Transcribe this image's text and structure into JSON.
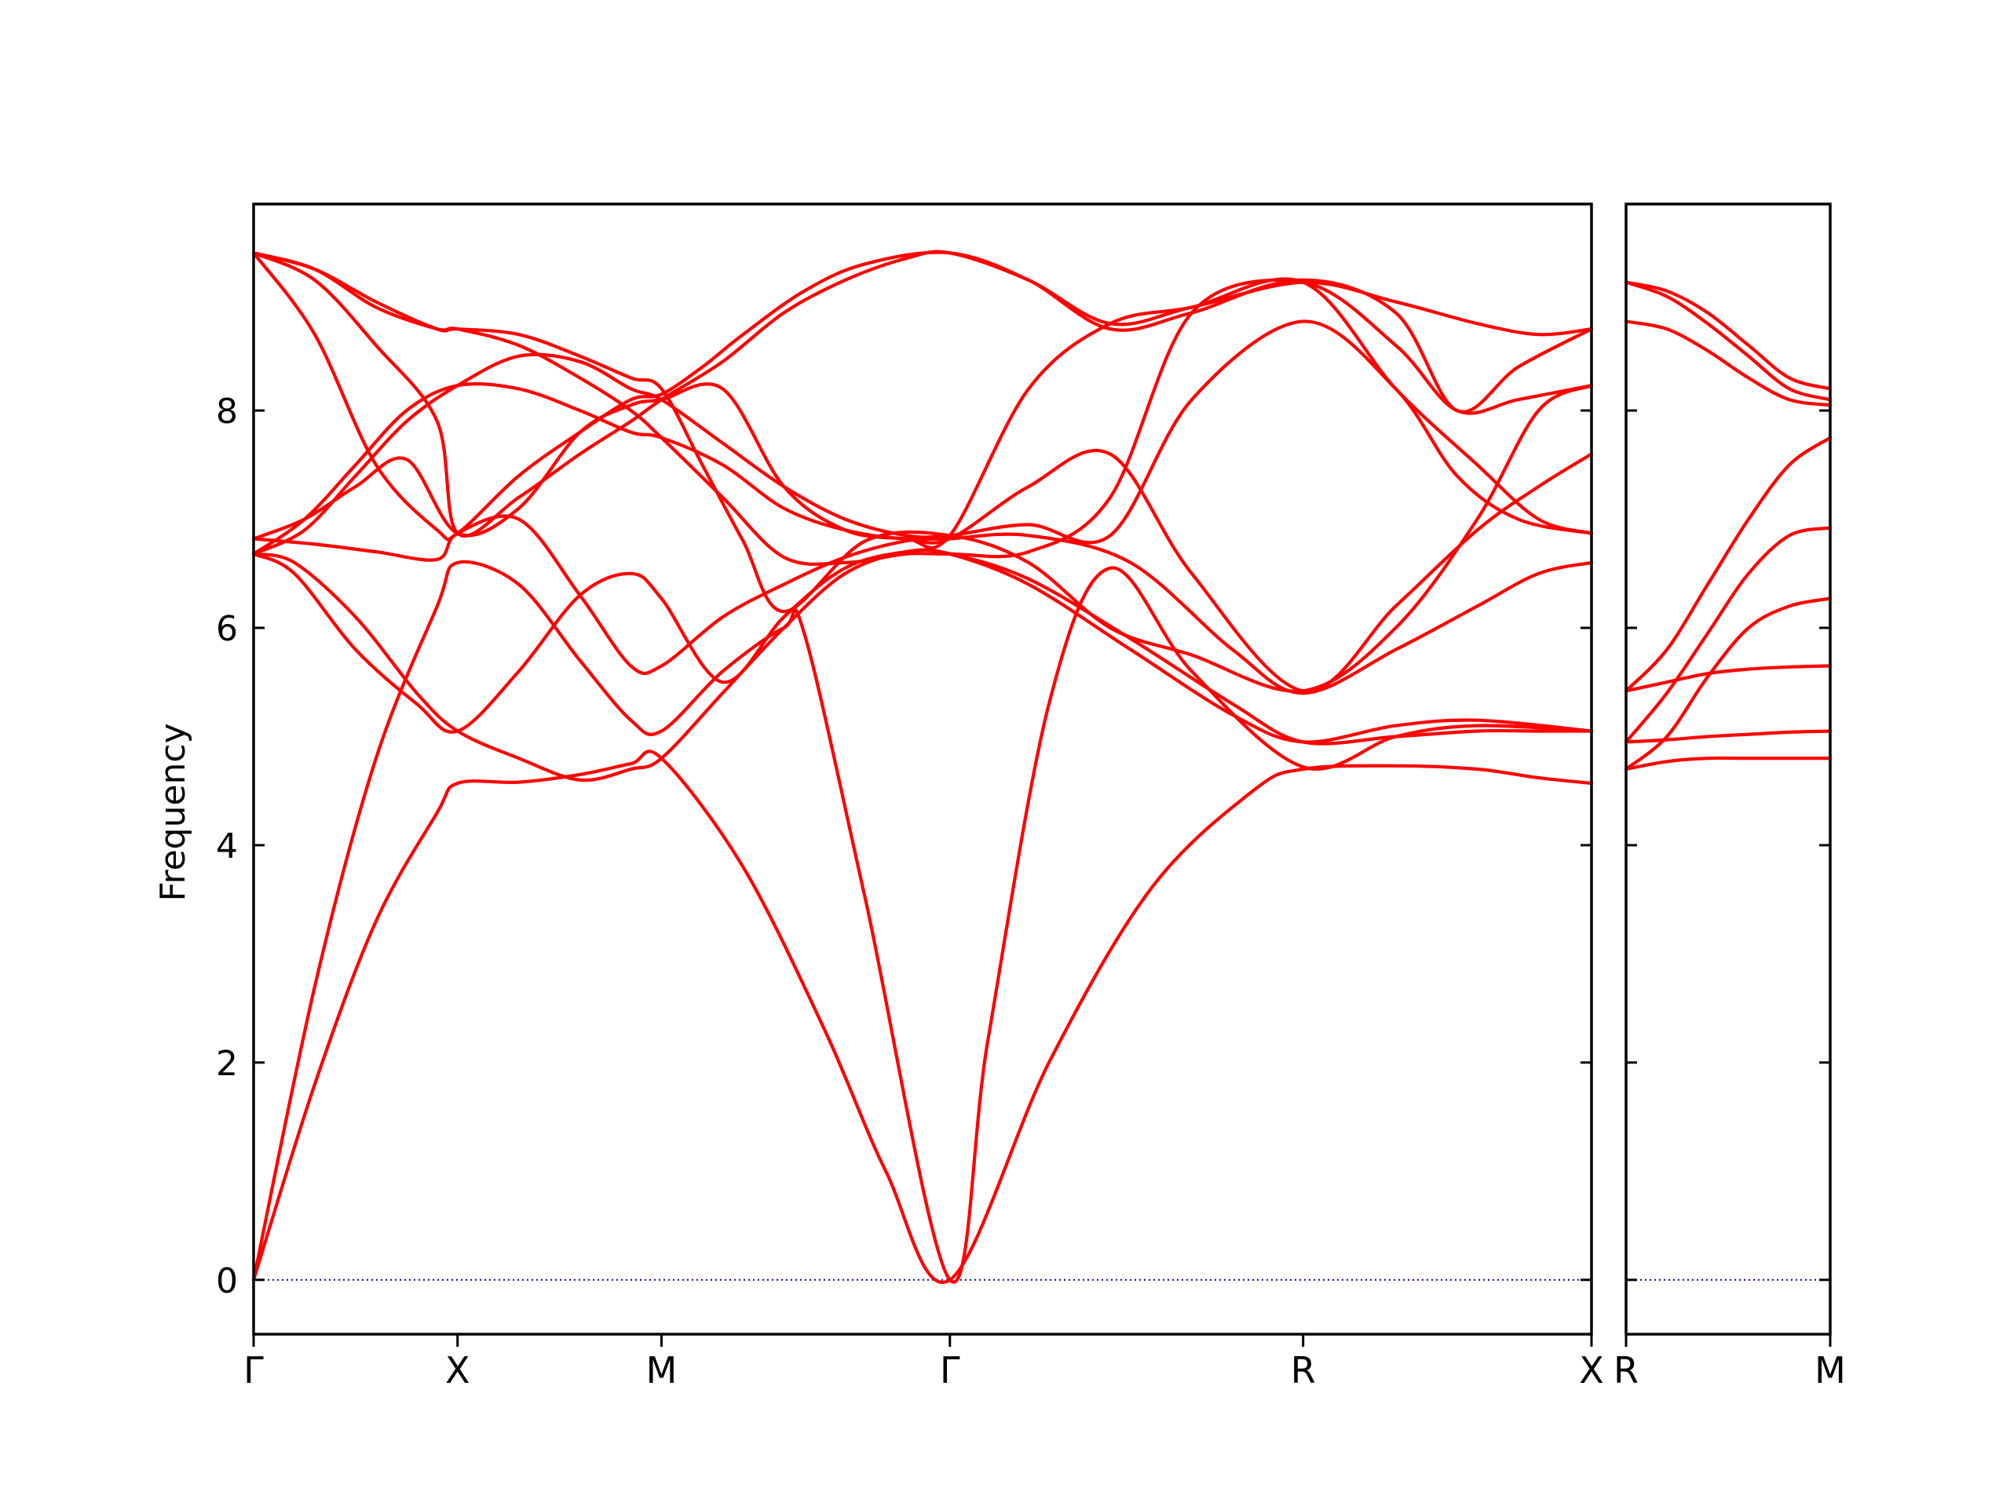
{
  "chart_data": {
    "type": "line",
    "ylabel": "Frequency",
    "ylim": [
      -0.5,
      9.9
    ],
    "yticks": [
      0,
      2,
      4,
      6,
      8
    ],
    "line_color": "#ff0000",
    "zero_line_color": "#0000aa",
    "grid": false,
    "panels": [
      {
        "name": "main",
        "xticks": [
          {
            "label": "Γ",
            "x": 0.0
          },
          {
            "label": "X",
            "x": 1.0
          },
          {
            "label": "M",
            "x": 2.0
          },
          {
            "label": "Γ",
            "x": 3.414
          },
          {
            "label": "R",
            "x": 5.146
          },
          {
            "label": "X",
            "x": 6.56
          }
        ],
        "xlim": [
          0.0,
          6.56
        ],
        "series": [
          {
            "x": [
              0.0,
              0.3,
              0.6,
              0.9,
              1.0,
              1.3,
              1.6,
              1.85,
              2.0,
              2.4,
              2.8,
              3.1,
              3.414,
              3.9,
              4.4,
              4.9,
              5.146,
              5.6,
              6.0,
              6.3,
              6.56
            ],
            "y": [
              0.0,
              1.8,
              3.3,
              4.3,
              4.57,
              4.58,
              4.65,
              4.75,
              4.8,
              3.8,
              2.3,
              1.0,
              0.0,
              2.0,
              3.6,
              4.5,
              4.7,
              4.73,
              4.7,
              4.62,
              4.57
            ]
          },
          {
            "x": [
              0.0,
              0.3,
              0.6,
              0.9,
              1.0,
              1.3,
              1.6,
              1.85,
              2.0,
              2.3,
              2.6,
              2.7,
              3.0,
              3.414,
              3.6,
              3.9,
              4.2,
              4.6,
              5.146,
              5.6,
              6.0,
              6.56
            ],
            "y": [
              0.0,
              2.7,
              4.8,
              6.2,
              6.6,
              6.4,
              5.7,
              5.15,
              5.05,
              5.6,
              6.0,
              5.95,
              3.5,
              0.0,
              2.2,
              5.3,
              6.55,
              5.6,
              4.72,
              5.0,
              5.1,
              5.05
            ]
          },
          {
            "x": [
              0.0,
              0.2,
              0.5,
              0.8,
              1.0,
              1.3,
              1.6,
              1.85,
              2.0,
              2.3,
              2.6,
              2.9,
              3.2,
              3.414,
              3.8,
              4.3,
              4.8,
              5.146,
              5.6,
              6.0,
              6.56
            ],
            "y": [
              6.68,
              6.5,
              5.8,
              5.3,
              5.05,
              5.6,
              6.3,
              6.5,
              6.27,
              5.5,
              6.1,
              6.55,
              6.7,
              6.68,
              6.4,
              5.8,
              5.2,
              4.95,
              5.1,
              5.15,
              5.05
            ]
          },
          {
            "x": [
              0.0,
              0.2,
              0.5,
              0.8,
              1.0,
              1.3,
              1.6,
              1.85,
              2.0,
              2.3,
              2.6,
              2.9,
              3.2,
              3.414,
              3.8,
              4.3,
              4.8,
              5.146,
              5.6,
              6.0,
              6.3,
              6.56
            ],
            "y": [
              6.68,
              6.6,
              6.1,
              5.4,
              5.05,
              4.8,
              4.6,
              4.7,
              4.8,
              5.4,
              6.0,
              6.5,
              6.7,
              6.68,
              6.45,
              5.9,
              5.3,
              4.95,
              5.0,
              5.05,
              5.05,
              5.05
            ]
          },
          {
            "x": [
              0.0,
              0.3,
              0.6,
              0.9,
              1.0,
              1.3,
              1.6,
              1.85,
              2.0,
              2.3,
              2.6,
              2.9,
              3.2,
              3.414,
              3.8,
              4.3,
              4.8,
              5.146,
              5.6,
              6.0,
              6.3,
              6.56
            ],
            "y": [
              6.82,
              6.77,
              6.7,
              6.63,
              6.87,
              7.0,
              6.3,
              5.65,
              5.65,
              6.1,
              6.4,
              6.65,
              6.8,
              6.82,
              6.85,
              6.6,
              5.8,
              5.4,
              5.8,
              6.2,
              6.5,
              6.6
            ]
          },
          {
            "x": [
              0.0,
              0.25,
              0.5,
              0.75,
              1.0,
              1.3,
              1.6,
              1.85,
              2.0,
              2.3,
              2.6,
              2.9,
              3.2,
              3.414,
              3.8,
              4.2,
              4.6,
              5.146,
              5.6,
              6.0,
              6.3,
              6.56
            ],
            "y": [
              6.82,
              7.0,
              7.3,
              7.55,
              6.87,
              7.1,
              7.8,
              8.05,
              8.1,
              8.2,
              7.3,
              6.9,
              6.82,
              6.82,
              7.3,
              7.6,
              6.5,
              5.42,
              6.2,
              6.9,
              7.3,
              7.6
            ]
          },
          {
            "x": [
              0.0,
              0.25,
              0.5,
              0.75,
              1.0,
              1.3,
              1.6,
              1.85,
              2.0,
              2.3,
              2.6,
              2.9,
              3.2,
              3.414,
              3.8,
              4.2,
              4.6,
              5.146,
              5.6,
              5.9,
              6.2,
              6.56
            ],
            "y": [
              6.68,
              6.9,
              7.4,
              7.9,
              8.23,
              8.5,
              8.45,
              8.2,
              8.1,
              7.7,
              7.3,
              7.0,
              6.85,
              6.85,
              6.95,
              6.85,
              8.1,
              8.82,
              8.2,
              7.4,
              7.0,
              6.87
            ]
          },
          {
            "x": [
              0.0,
              0.3,
              0.6,
              0.9,
              1.0,
              1.3,
              1.6,
              1.85,
              2.0,
              2.3,
              2.6,
              2.9,
              3.2,
              3.414,
              3.8,
              4.2,
              4.6,
              5.146,
              5.6,
              6.0,
              6.3,
              6.56
            ],
            "y": [
              9.45,
              9.2,
              8.6,
              7.9,
              6.87,
              7.2,
              7.6,
              7.9,
              8.1,
              8.45,
              8.9,
              9.2,
              9.4,
              9.45,
              9.2,
              8.8,
              8.95,
              9.18,
              8.2,
              7.5,
              7.0,
              6.87
            ]
          },
          {
            "x": [
              0.0,
              0.3,
              0.6,
              0.9,
              1.0,
              1.3,
              1.6,
              1.85,
              2.0,
              2.3,
              2.6,
              2.9,
              3.2,
              3.414,
              3.8,
              4.2,
              4.6,
              5.146,
              5.6,
              5.9,
              6.2,
              6.56
            ],
            "y": [
              9.45,
              9.3,
              8.95,
              8.75,
              8.75,
              8.6,
              8.3,
              8.0,
              7.75,
              7.2,
              6.65,
              6.6,
              6.68,
              6.68,
              6.7,
              7.2,
              8.9,
              9.2,
              8.9,
              8.0,
              8.4,
              8.75
            ]
          },
          {
            "x": [
              0.0,
              0.3,
              0.6,
              0.9,
              1.0,
              1.3,
              1.6,
              1.85,
              2.0,
              2.2,
              2.4,
              2.6,
              3.0,
              3.414,
              3.8,
              4.2,
              4.6,
              5.146,
              5.6,
              6.0,
              6.3,
              6.56
            ],
            "y": [
              9.45,
              9.3,
              9.0,
              8.75,
              8.75,
              8.7,
              8.5,
              8.3,
              8.2,
              7.5,
              6.8,
              6.15,
              6.8,
              6.85,
              6.6,
              6.0,
              5.75,
              5.42,
              6.0,
              7.0,
              8.0,
              8.23
            ]
          },
          {
            "x": [
              0.0,
              0.25,
              0.5,
              0.75,
              1.0,
              1.3,
              1.6,
              1.85,
              2.0,
              2.3,
              2.6,
              2.9,
              3.2,
              3.414,
              3.8,
              4.2,
              4.6,
              5.146,
              5.6,
              6.0,
              6.3,
              6.56
            ],
            "y": [
              6.68,
              7.0,
              7.5,
              8.0,
              8.23,
              8.2,
              8.0,
              7.8,
              7.75,
              7.5,
              7.1,
              6.9,
              6.82,
              6.85,
              8.2,
              8.8,
              8.95,
              9.18,
              9.0,
              8.8,
              8.7,
              8.75
            ]
          },
          {
            "x": [
              0.0,
              0.3,
              0.6,
              0.9,
              1.0,
              1.3,
              1.6,
              1.85,
              2.0,
              2.2,
              2.4,
              2.7,
              3.0,
              3.414,
              3.8,
              4.2,
              4.6,
              5.146,
              5.6,
              5.9,
              6.2,
              6.56
            ],
            "y": [
              9.45,
              8.7,
              7.5,
              6.9,
              6.87,
              7.4,
              7.8,
              8.1,
              8.15,
              8.4,
              8.7,
              9.1,
              9.35,
              9.45,
              9.2,
              8.75,
              8.9,
              9.18,
              8.6,
              8.0,
              8.1,
              8.23
            ]
          }
        ]
      },
      {
        "name": "right",
        "xticks": [
          {
            "label": "R",
            "x": 0.0
          },
          {
            "label": "M",
            "x": 1.0
          }
        ],
        "xlim": [
          0.0,
          1.0
        ],
        "series": [
          {
            "x": [
              0.0,
              0.2,
              0.4,
              0.6,
              0.8,
              1.0
            ],
            "y": [
              4.7,
              4.77,
              4.8,
              4.8,
              4.8,
              4.8
            ]
          },
          {
            "x": [
              0.0,
              0.2,
              0.4,
              0.6,
              0.8,
              1.0
            ],
            "y": [
              4.95,
              4.97,
              5.0,
              5.02,
              5.04,
              5.05
            ]
          },
          {
            "x": [
              0.0,
              0.2,
              0.4,
              0.6,
              0.8,
              1.0
            ],
            "y": [
              5.42,
              5.5,
              5.58,
              5.62,
              5.64,
              5.65
            ]
          },
          {
            "x": [
              0.0,
              0.2,
              0.4,
              0.6,
              0.8,
              1.0
            ],
            "y": [
              4.7,
              5.0,
              5.55,
              6.0,
              6.2,
              6.27
            ]
          },
          {
            "x": [
              0.0,
              0.2,
              0.4,
              0.6,
              0.8,
              1.0
            ],
            "y": [
              4.95,
              5.4,
              5.95,
              6.5,
              6.85,
              6.92
            ]
          },
          {
            "x": [
              0.0,
              0.2,
              0.4,
              0.6,
              0.8,
              1.0
            ],
            "y": [
              5.42,
              5.8,
              6.4,
              7.0,
              7.5,
              7.75
            ]
          },
          {
            "x": [
              0.0,
              0.2,
              0.4,
              0.6,
              0.8,
              1.0
            ],
            "y": [
              8.82,
              8.75,
              8.55,
              8.3,
              8.1,
              8.05
            ]
          },
          {
            "x": [
              0.0,
              0.2,
              0.4,
              0.6,
              0.8,
              1.0
            ],
            "y": [
              9.18,
              9.05,
              8.8,
              8.5,
              8.2,
              8.1
            ]
          },
          {
            "x": [
              0.0,
              0.2,
              0.4,
              0.6,
              0.8,
              1.0
            ],
            "y": [
              9.18,
              9.1,
              8.9,
              8.6,
              8.3,
              8.2
            ]
          }
        ]
      }
    ]
  }
}
